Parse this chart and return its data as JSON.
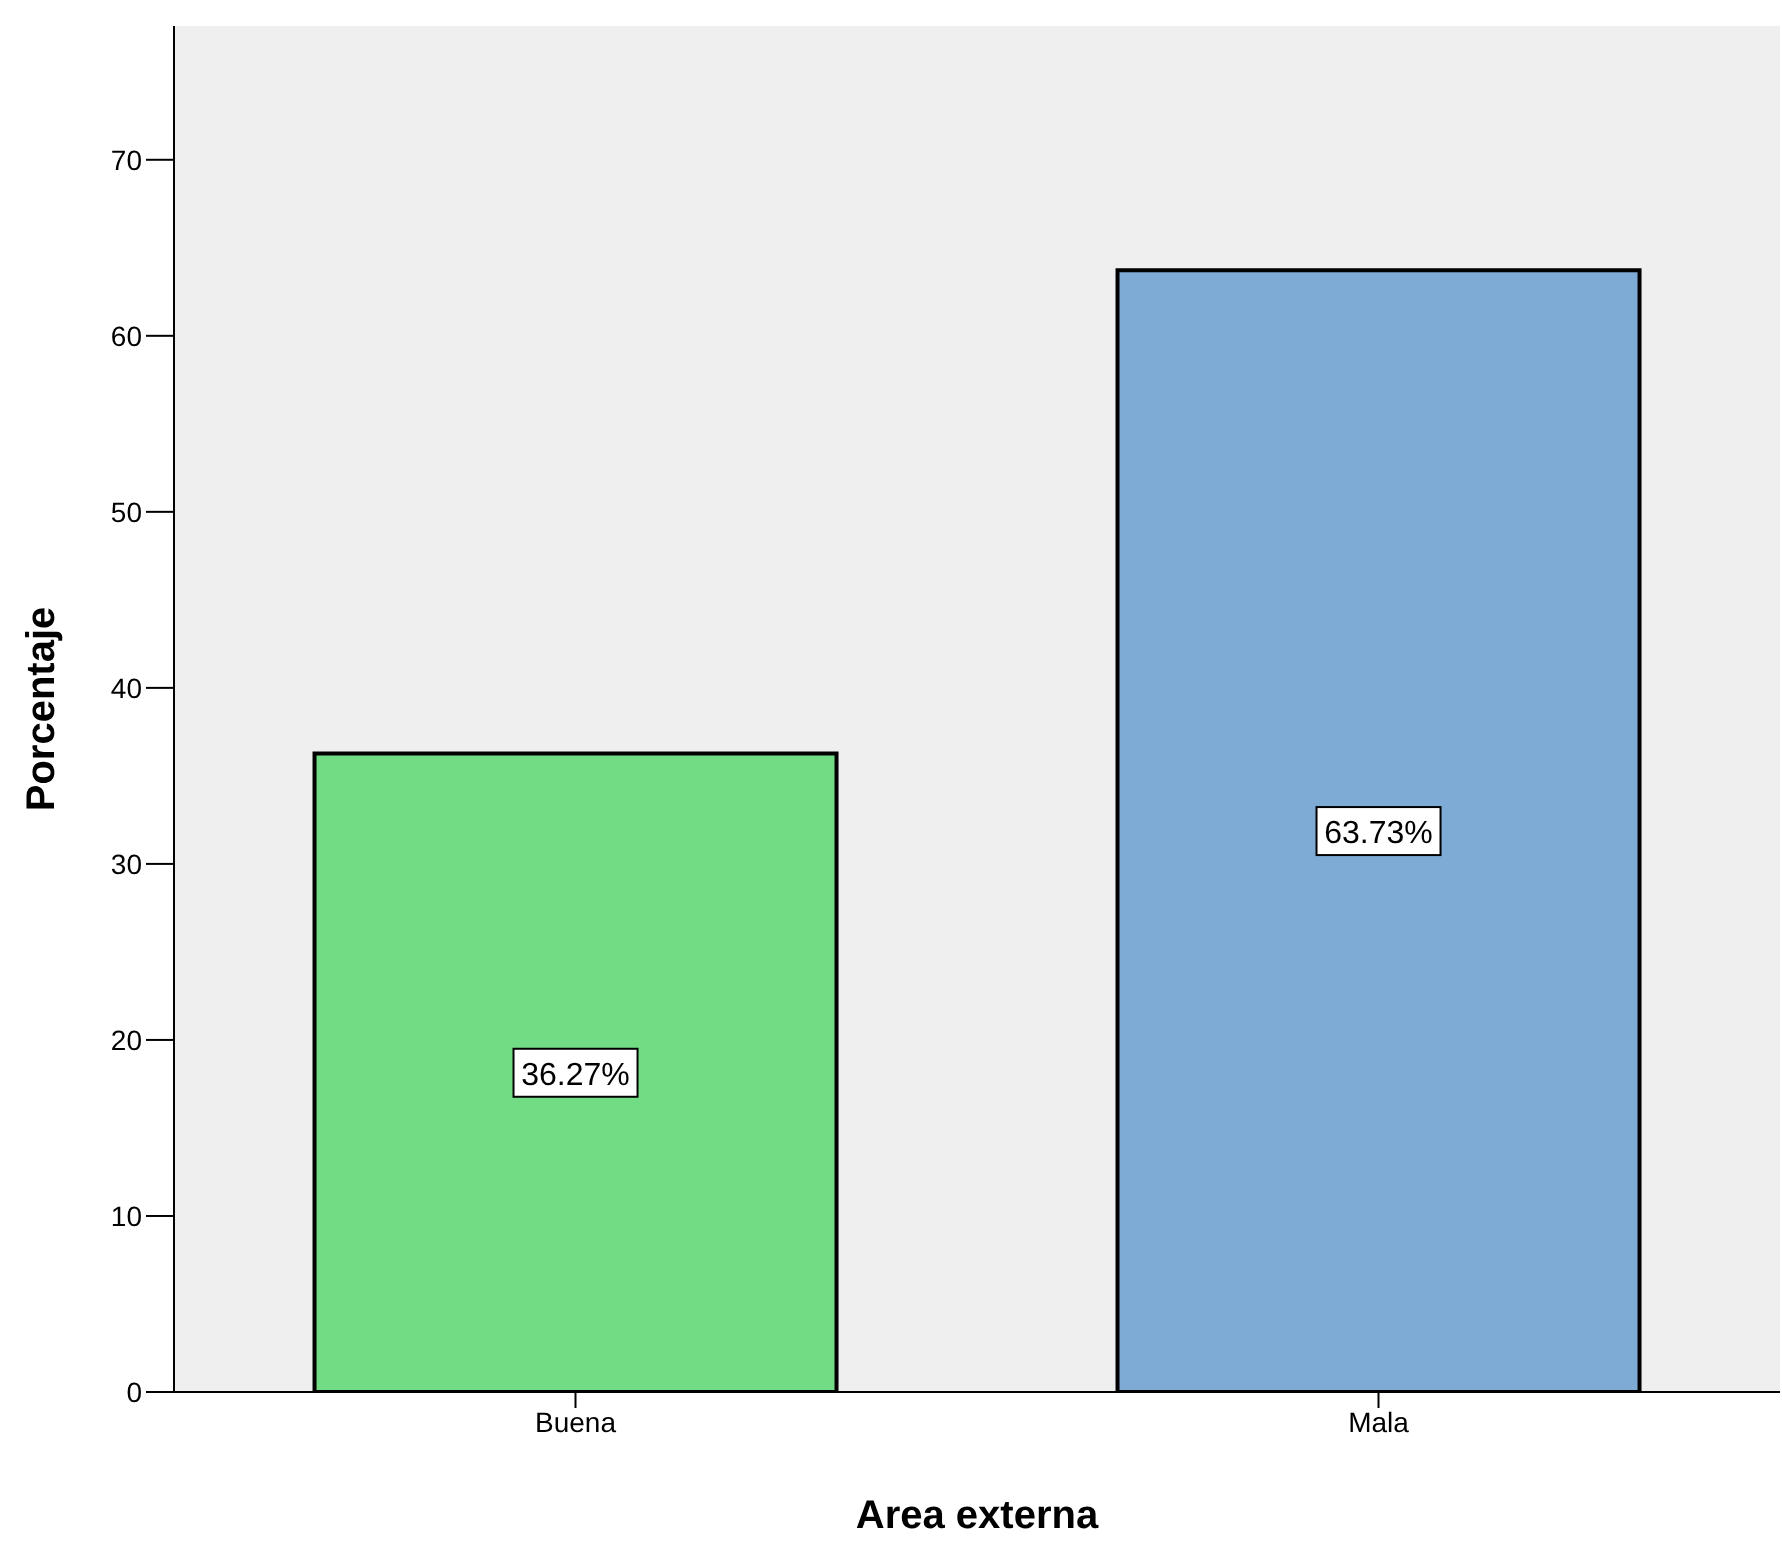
{
  "chart_data": {
    "type": "bar",
    "xlabel": "Area externa",
    "ylabel": "Porcentaje",
    "categories": [
      "Buena",
      "Mala"
    ],
    "values": [
      36.27,
      63.73
    ],
    "colors": [
      "#72dc84",
      "#7eaad6"
    ],
    "value_labels": [
      "36.27%",
      "63.73%"
    ],
    "ylim": [
      0,
      77.6
    ],
    "yticks": [
      0,
      10,
      20,
      30,
      40,
      50,
      60,
      70
    ],
    "grid": false
  }
}
